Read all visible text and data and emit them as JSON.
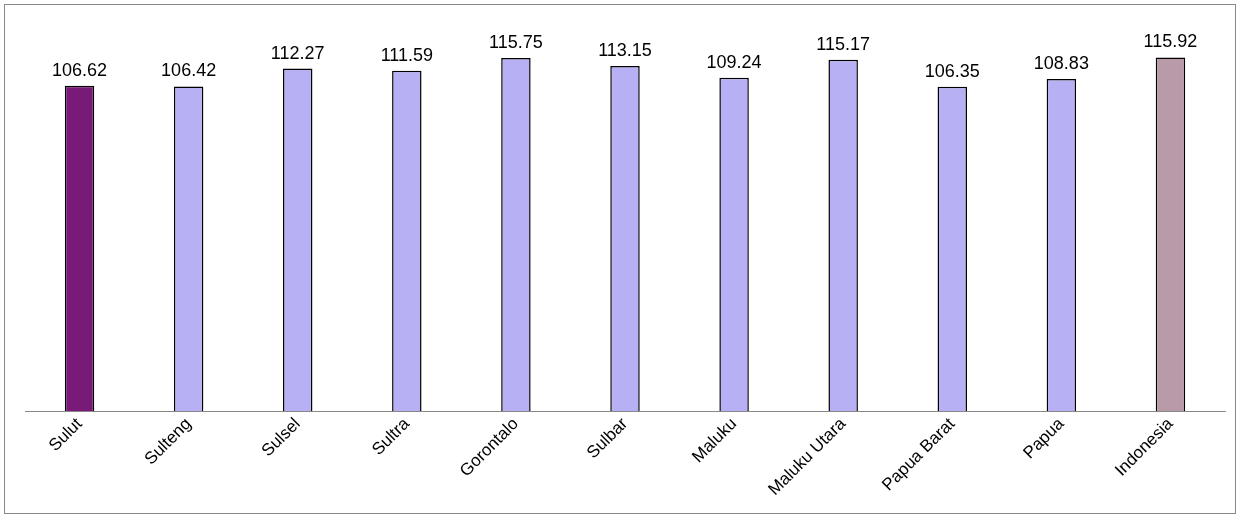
{
  "chart_data": {
    "type": "bar",
    "categories": [
      "Sulut",
      "Sulteng",
      "Sulsel",
      "Sultra",
      "Gorontalo",
      "Sulbar",
      "Maluku",
      "Maluku Utara",
      "Papua Barat",
      "Papua",
      "Indonesia"
    ],
    "values": [
      106.62,
      106.42,
      112.27,
      111.59,
      115.75,
      113.15,
      109.24,
      115.17,
      106.35,
      108.83,
      115.92
    ],
    "colors": [
      "#7a1a78",
      "#b8b0f4",
      "#b8b0f4",
      "#b8b0f4",
      "#b8b0f4",
      "#b8b0f4",
      "#b8b0f4",
      "#b8b0f4",
      "#b8b0f4",
      "#b8b0f4",
      "#b89aa8"
    ],
    "data_labels": true,
    "grid": false,
    "legend": false,
    "tick_labels": "x"
  }
}
